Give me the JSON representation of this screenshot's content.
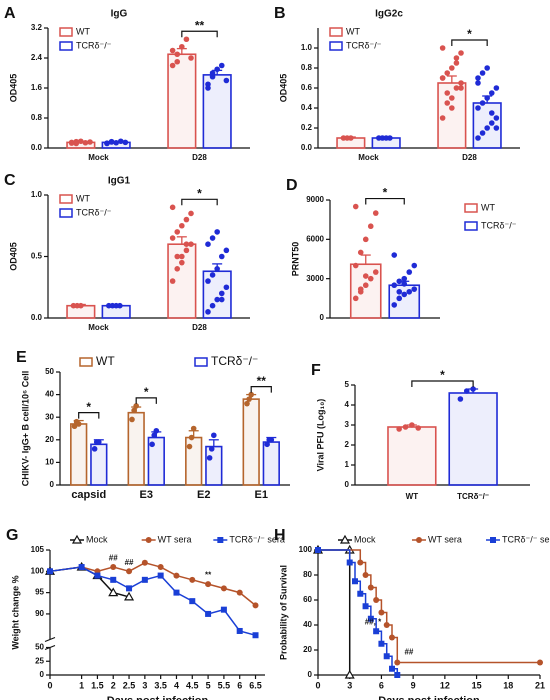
{
  "chart_data": [
    {
      "letter": "A",
      "type": "bar",
      "title": "IgG",
      "ylabel": "OD405",
      "categories": [
        "Mock",
        "D28"
      ],
      "ylim": [
        0,
        3.2
      ],
      "yticks": [
        {
          "value": 0,
          "label": "0.0"
        },
        0.8,
        1.6,
        2.4,
        3.2
      ],
      "legend": "top-left",
      "series": [
        {
          "name": "WT",
          "color": "#d9534f",
          "values": [
            0.15,
            2.5
          ],
          "errors": [
            0.02,
            0.15
          ],
          "points": [
            [
              0.15,
              0.12,
              0.18,
              0.14,
              0.16,
              0.13,
              0.17
            ],
            [
              2.2,
              2.5,
              2.7,
              2.9,
              2.4,
              2.6,
              2.3
            ]
          ]
        },
        {
          "name": "TCRδ⁻/⁻",
          "color": "#1f2bd6",
          "values": [
            0.15,
            1.95
          ],
          "errors": [
            0.02,
            0.12
          ],
          "points": [
            [
              0.12,
              0.16,
              0.14,
              0.18,
              0.15,
              0.13,
              0.17
            ],
            [
              1.7,
              1.9,
              2.1,
              2.2,
              1.8,
              1.6,
              2.0
            ]
          ]
        }
      ],
      "annotations": [
        {
          "text": "**",
          "from": [
            1,
            0
          ],
          "to": [
            1,
            1
          ]
        }
      ]
    },
    {
      "letter": "B",
      "type": "bar",
      "title": "IgG2c",
      "ylabel": "OD405",
      "categories": [
        "Mock",
        "D28"
      ],
      "ylim": [
        0,
        1.2
      ],
      "yticks": [
        {
          "value": 0,
          "label": "0.0"
        },
        0.2,
        0.4,
        0.6,
        0.8,
        {
          "value": 1,
          "label": "1.0"
        }
      ],
      "legend": "top-left",
      "series": [
        {
          "name": "WT",
          "color": "#d9534f",
          "values": [
            0.1,
            0.65
          ],
          "errors": [
            0.01,
            0.07
          ],
          "points": [
            [
              0.1,
              0.1,
              0.1
            ],
            [
              0.3,
              0.45,
              0.5,
              0.6,
              0.65,
              0.7,
              0.75,
              0.8,
              0.9,
              0.95,
              1.0,
              0.55,
              0.4,
              0.85,
              0.6,
              0.7
            ]
          ]
        },
        {
          "name": "TCRδ⁻/⁻",
          "color": "#1f2bd6",
          "values": [
            0.1,
            0.45
          ],
          "errors": [
            0.01,
            0.07
          ],
          "points": [
            [
              0.1,
              0.1,
              0.1,
              0.1
            ],
            [
              0.1,
              0.15,
              0.2,
              0.25,
              0.3,
              0.4,
              0.45,
              0.5,
              0.55,
              0.6,
              0.7,
              0.75,
              0.8,
              0.35,
              0.2,
              0.65
            ]
          ]
        }
      ],
      "annotations": [
        {
          "text": "*",
          "from": [
            1,
            0
          ],
          "to": [
            1,
            1
          ]
        }
      ]
    },
    {
      "letter": "C",
      "type": "bar",
      "title": "IgG1",
      "ylabel": "OD405",
      "categories": [
        "Mock",
        "D28"
      ],
      "ylim": [
        0,
        1
      ],
      "yticks": [
        {
          "value": 0,
          "label": "0.0"
        },
        0.5,
        {
          "value": 1,
          "label": "1.0"
        }
      ],
      "legend": "top-left",
      "series": [
        {
          "name": "WT",
          "color": "#d9534f",
          "values": [
            0.1,
            0.6
          ],
          "errors": [
            0.01,
            0.06
          ],
          "points": [
            [
              0.1,
              0.1,
              0.1
            ],
            [
              0.3,
              0.4,
              0.5,
              0.55,
              0.6,
              0.65,
              0.7,
              0.75,
              0.8,
              0.85,
              0.9,
              0.5,
              0.45,
              0.6
            ]
          ]
        },
        {
          "name": "TCRδ⁻/⁻",
          "color": "#1f2bd6",
          "values": [
            0.1,
            0.38
          ],
          "errors": [
            0.01,
            0.06
          ],
          "points": [
            [
              0.1,
              0.1,
              0.1,
              0.1
            ],
            [
              0.05,
              0.1,
              0.15,
              0.2,
              0.25,
              0.3,
              0.35,
              0.4,
              0.5,
              0.55,
              0.6,
              0.65,
              0.7,
              0.15
            ]
          ]
        }
      ],
      "annotations": [
        {
          "text": "*",
          "from": [
            1,
            0
          ],
          "to": [
            1,
            1
          ]
        }
      ]
    },
    {
      "letter": "D",
      "type": "bar",
      "ylabel": "PRNT50",
      "categories": [
        null
      ],
      "ylim": [
        0,
        9000
      ],
      "yticks": [
        0,
        3000,
        6000,
        9000
      ],
      "legend": "right",
      "series": [
        {
          "name": "WT",
          "color": "#d9534f",
          "values": [
            4100
          ],
          "errors": [
            700
          ],
          "points": [
            [
              1500,
              2000,
              2500,
              3000,
              3500,
              4000,
              5000,
              6000,
              7000,
              8000,
              8500,
              2200,
              3200
            ]
          ]
        },
        {
          "name": "TCRδ⁻/⁻",
          "color": "#1f2bd6",
          "values": [
            2500
          ],
          "errors": [
            300
          ],
          "points": [
            [
              1000,
              1500,
              1800,
              2000,
              2200,
              2500,
              2800,
              3000,
              3500,
              4000,
              4800,
              2000,
              2600
            ]
          ]
        }
      ],
      "annotations": [
        {
          "text": "*",
          "from": [
            0,
            0
          ],
          "to": [
            0,
            1
          ]
        }
      ]
    },
    {
      "letter": "E",
      "type": "bar",
      "ylabel": "CHIKV- IgG+ B cell/10⁶ Cell",
      "categories": [
        "capsid",
        "E3",
        "E2",
        "E1"
      ],
      "ylim": [
        0,
        50
      ],
      "yticks": [
        0,
        10,
        20,
        30,
        40,
        50
      ],
      "legend": "top",
      "series": [
        {
          "name": "WT",
          "color": "#b5652d",
          "values": [
            27,
            32,
            21,
            38
          ],
          "errors": [
            1.5,
            2.5,
            3,
            2
          ],
          "points": [
            [
              26,
              28,
              27
            ],
            [
              29,
              33,
              35
            ],
            [
              17,
              21,
              25
            ],
            [
              36,
              38,
              40
            ]
          ]
        },
        {
          "name": "TCRδ⁻/⁻",
          "color": "#1f2bd6",
          "values": [
            18,
            21,
            17,
            19
          ],
          "errors": [
            2,
            2.5,
            3,
            2
          ],
          "points": [
            [
              16,
              19,
              19
            ],
            [
              18,
              22,
              24
            ],
            [
              12,
              16,
              22
            ],
            [
              18,
              20,
              20
            ]
          ]
        }
      ],
      "annotations": [
        {
          "text": "*",
          "from": [
            0,
            0
          ],
          "to": [
            0,
            1
          ]
        },
        {
          "text": "*",
          "from": [
            1,
            0
          ],
          "to": [
            1,
            1
          ]
        },
        {
          "text": "**",
          "from": [
            3,
            0
          ],
          "to": [
            3,
            1
          ]
        }
      ]
    },
    {
      "letter": "F",
      "type": "bar",
      "ylabel": "Viral PFU (Log₁₀)",
      "categories": [
        null
      ],
      "series_labels": true,
      "ylim": [
        0,
        5
      ],
      "yticks": [
        0,
        1,
        2,
        3,
        4,
        5
      ],
      "series": [
        {
          "name": "WT",
          "color": "#d9534f",
          "values": [
            2.9
          ],
          "errors": [
            0.1
          ],
          "points": [
            [
              2.8,
              2.9,
              3.0,
              2.85
            ]
          ]
        },
        {
          "name": "TCRδ⁻/⁻",
          "color": "#1f2bd6",
          "values": [
            4.6
          ],
          "errors": [
            0.2
          ],
          "points": [
            [
              4.3,
              4.7,
              4.8
            ]
          ]
        }
      ],
      "annotations": [
        {
          "text": "*",
          "from": [
            0,
            0
          ],
          "to": [
            0,
            1
          ]
        }
      ]
    },
    {
      "letter": "G",
      "type": "line",
      "ylabel": "Weight change %",
      "xlabel": "Days post infection",
      "xlim": [
        0,
        6.8
      ],
      "xticks": [
        0,
        1,
        1.5,
        2,
        2.5,
        3,
        3.5,
        4,
        4.5,
        5,
        5.5,
        6,
        6.5
      ],
      "ylim": [
        0,
        105
      ],
      "ysegments": [
        [
          0,
          50
        ],
        [
          84,
          105
        ]
      ],
      "yticks": [
        0,
        25,
        50,
        90,
        95,
        100,
        105
      ],
      "legend": "top",
      "series": [
        {
          "name": "Mock",
          "color": "#111111",
          "marker": "triangle",
          "x": [
            0,
            1,
            1.5,
            2,
            2.5
          ],
          "values": [
            100,
            101,
            99,
            95,
            94
          ]
        },
        {
          "name": "WT sera",
          "color": "#b5532a",
          "marker": "circle",
          "x": [
            0,
            1,
            1.5,
            2,
            2.5,
            3,
            3.5,
            4,
            4.5,
            5,
            5.5,
            6,
            6.5
          ],
          "values": [
            100,
            101,
            100,
            101,
            100,
            102,
            101,
            99,
            98,
            97,
            96,
            95,
            92
          ]
        },
        {
          "name": "TCRδ⁻/⁻ sera",
          "color": "#1a3fd6",
          "marker": "square",
          "x": [
            0,
            1,
            1.5,
            2,
            2.5,
            3,
            3.5,
            4,
            4.5,
            5,
            5.5,
            6,
            6.5
          ],
          "values": [
            100,
            101,
            99,
            98,
            96,
            98,
            99,
            95,
            93,
            90,
            91,
            86,
            85
          ]
        }
      ],
      "annotations": [
        {
          "text": "##",
          "x": 2,
          "y": 103
        },
        {
          "text": "##",
          "x": 2.5,
          "y": 102
        },
        {
          "text": "**",
          "x": 5,
          "y": 99
        }
      ]
    },
    {
      "letter": "H",
      "type": "step",
      "ylabel": "Probability of Survival",
      "xlabel": "Days post infection",
      "xlim": [
        0,
        21
      ],
      "xticks": [
        0,
        3,
        6,
        9,
        12,
        15,
        18,
        21
      ],
      "ylim": [
        0,
        100
      ],
      "yticks": [
        0,
        20,
        40,
        60,
        80,
        100
      ],
      "legend": "top",
      "series": [
        {
          "name": "Mock",
          "color": "#111111",
          "marker": "triangle",
          "x": [
            0,
            3,
            3
          ],
          "values": [
            100,
            100,
            0
          ]
        },
        {
          "name": "WT sera",
          "color": "#b5532a",
          "marker": "circle",
          "x": [
            0,
            4,
            4.5,
            5,
            5.5,
            6,
            6.5,
            7,
            7.5,
            21
          ],
          "values": [
            100,
            90,
            80,
            70,
            60,
            50,
            40,
            30,
            10,
            10
          ]
        },
        {
          "name": "TCRδ⁻/⁻ sera",
          "color": "#1a3fd6",
          "marker": "square",
          "x": [
            0,
            3,
            3.5,
            4,
            4.5,
            5,
            5.5,
            6,
            6.5,
            7,
            7.5
          ],
          "values": [
            100,
            90,
            75,
            65,
            55,
            45,
            35,
            25,
            15,
            5,
            0
          ]
        }
      ],
      "annotations": [
        {
          "text": "##, *",
          "x": 5.2,
          "y": 42
        },
        {
          "text": "##",
          "x": 8.6,
          "y": 18
        }
      ]
    }
  ]
}
